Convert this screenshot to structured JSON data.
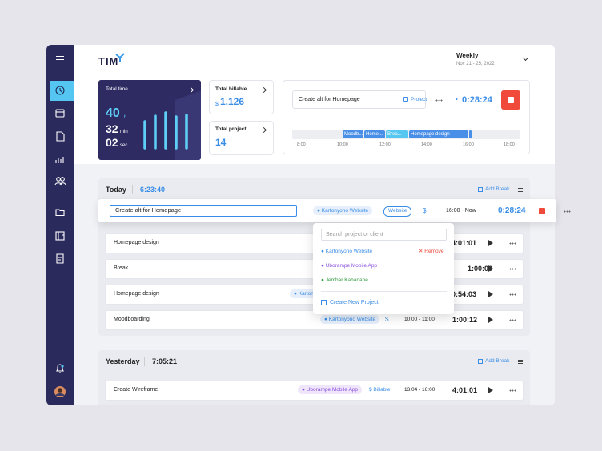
{
  "header": {
    "logo": "TIM",
    "period": "Weekly",
    "dates": "Nov 21 - 25, 2022"
  },
  "stats": {
    "total_time": {
      "label": "Total time",
      "hours": "40",
      "hours_unit": "h",
      "minutes": "32",
      "minutes_unit": "min",
      "seconds": "02",
      "seconds_unit": "sec"
    },
    "total_billable": {
      "label": "Total billable",
      "currency": "$",
      "amount": "1.126"
    },
    "total_project": {
      "label": "Total project",
      "count": "14"
    }
  },
  "timer": {
    "task": "Create alt for Homepage",
    "project_button": "Project",
    "elapsed": "0:28:24"
  },
  "timeline": {
    "segments": [
      "Moodb...",
      "Home...",
      "Brea...",
      "Homepage design"
    ],
    "hours": [
      "8:00",
      "10:00",
      "12:00",
      "14:00",
      "16:00",
      "18:00"
    ]
  },
  "today": {
    "title": "Today",
    "total": "6:23:40",
    "add_break": "Add Break",
    "active": {
      "task": "Create alt for Homepage",
      "project": "Kartonyono Website",
      "tag": "Website",
      "billable": "$",
      "time_range": "16:00 - Now",
      "duration": "0:28:24"
    },
    "entries": [
      {
        "task": "Homepage design",
        "duration": "4:01:01"
      },
      {
        "task": "Break",
        "duration": "1:00:00"
      },
      {
        "task": "Homepage design",
        "project": "Kartonyono",
        "duration": "0:54:03"
      },
      {
        "task": "Moodboarding",
        "project": "Kartonyono Website",
        "billable": "$",
        "time_range": "10:00 - 11:00",
        "duration": "1:00:12"
      }
    ]
  },
  "dropdown": {
    "search_placeholder": "Search project or client",
    "projects": [
      {
        "name": "Kartonyono Website",
        "action": "Remove"
      },
      {
        "name": "Uborampe Mobile App"
      },
      {
        "name": "Jembar Kahanane"
      }
    ],
    "create": "Create New Project"
  },
  "yesterday": {
    "title": "Yesterday",
    "total": "7:05:21",
    "add_break": "Add Break",
    "entries": [
      {
        "task": "Create Wireframe",
        "project": "Uborampe Mobile App",
        "billable": "$ Billable",
        "time_range": "13:04 - 16:00",
        "duration": "4:01:01"
      }
    ]
  }
}
